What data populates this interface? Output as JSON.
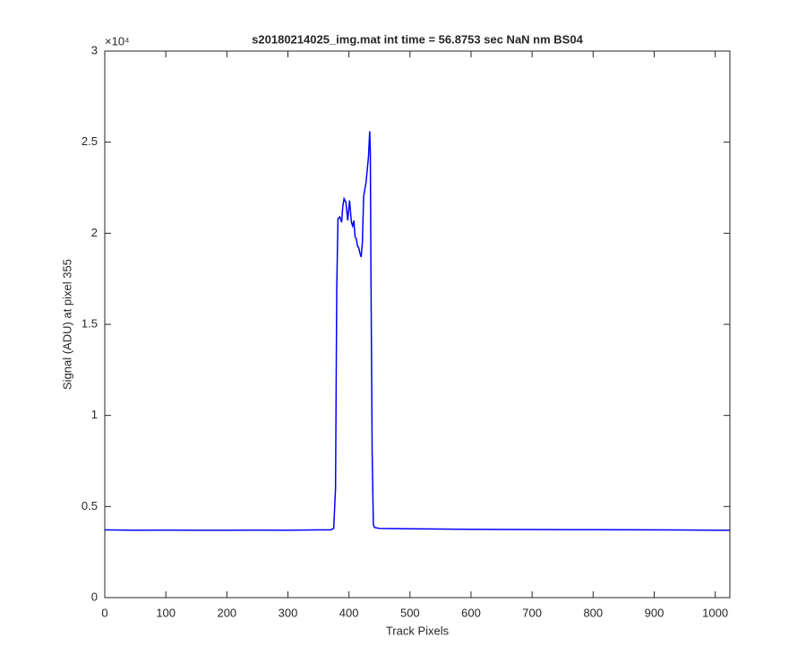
{
  "chart_data": {
    "type": "line",
    "title": "s20180214025_img.mat int time = 56.8753 sec  NaN nm BS04",
    "x_label": "Track Pixels",
    "y_label": "Signal (ADU) at pixel 355",
    "y_exponent_label": "×10⁴",
    "color": "#0000ff",
    "x": [
      0,
      50,
      100,
      150,
      200,
      250,
      300,
      350,
      370,
      375,
      378,
      380,
      382,
      385,
      388,
      390,
      392,
      395,
      398,
      401,
      404,
      406,
      408,
      410,
      412,
      414,
      416,
      418,
      420,
      422,
      424,
      426,
      428,
      430,
      432,
      434,
      435,
      436,
      438,
      440,
      442,
      450,
      500,
      600,
      700,
      800,
      900,
      1000,
      1024
    ],
    "values": [
      3720,
      3700,
      3710,
      3700,
      3700,
      3710,
      3700,
      3720,
      3720,
      3800,
      6000,
      17000,
      20800,
      20900,
      20600,
      21500,
      21900,
      21700,
      20700,
      21800,
      20600,
      20400,
      20700,
      19800,
      19700,
      19300,
      19200,
      18900,
      18700,
      19500,
      22000,
      22400,
      22800,
      23500,
      24200,
      25600,
      24500,
      18000,
      8000,
      4000,
      3850,
      3800,
      3780,
      3750,
      3740,
      3730,
      3720,
      3700,
      3700
    ],
    "xlim": [
      0,
      1024
    ],
    "xticks": [
      0,
      100,
      200,
      300,
      400,
      500,
      600,
      700,
      800,
      900,
      1000
    ],
    "ylim": [
      0,
      30000
    ],
    "yticks": [
      0,
      {
        "value": 5000,
        "label": "0.5"
      },
      {
        "value": 10000,
        "label": "1"
      },
      {
        "value": 15000,
        "label": "1.5"
      },
      {
        "value": 20000,
        "label": "2"
      },
      {
        "value": 25000,
        "label": "2.5"
      },
      {
        "value": 30000,
        "label": "3"
      }
    ],
    "grid": false
  }
}
